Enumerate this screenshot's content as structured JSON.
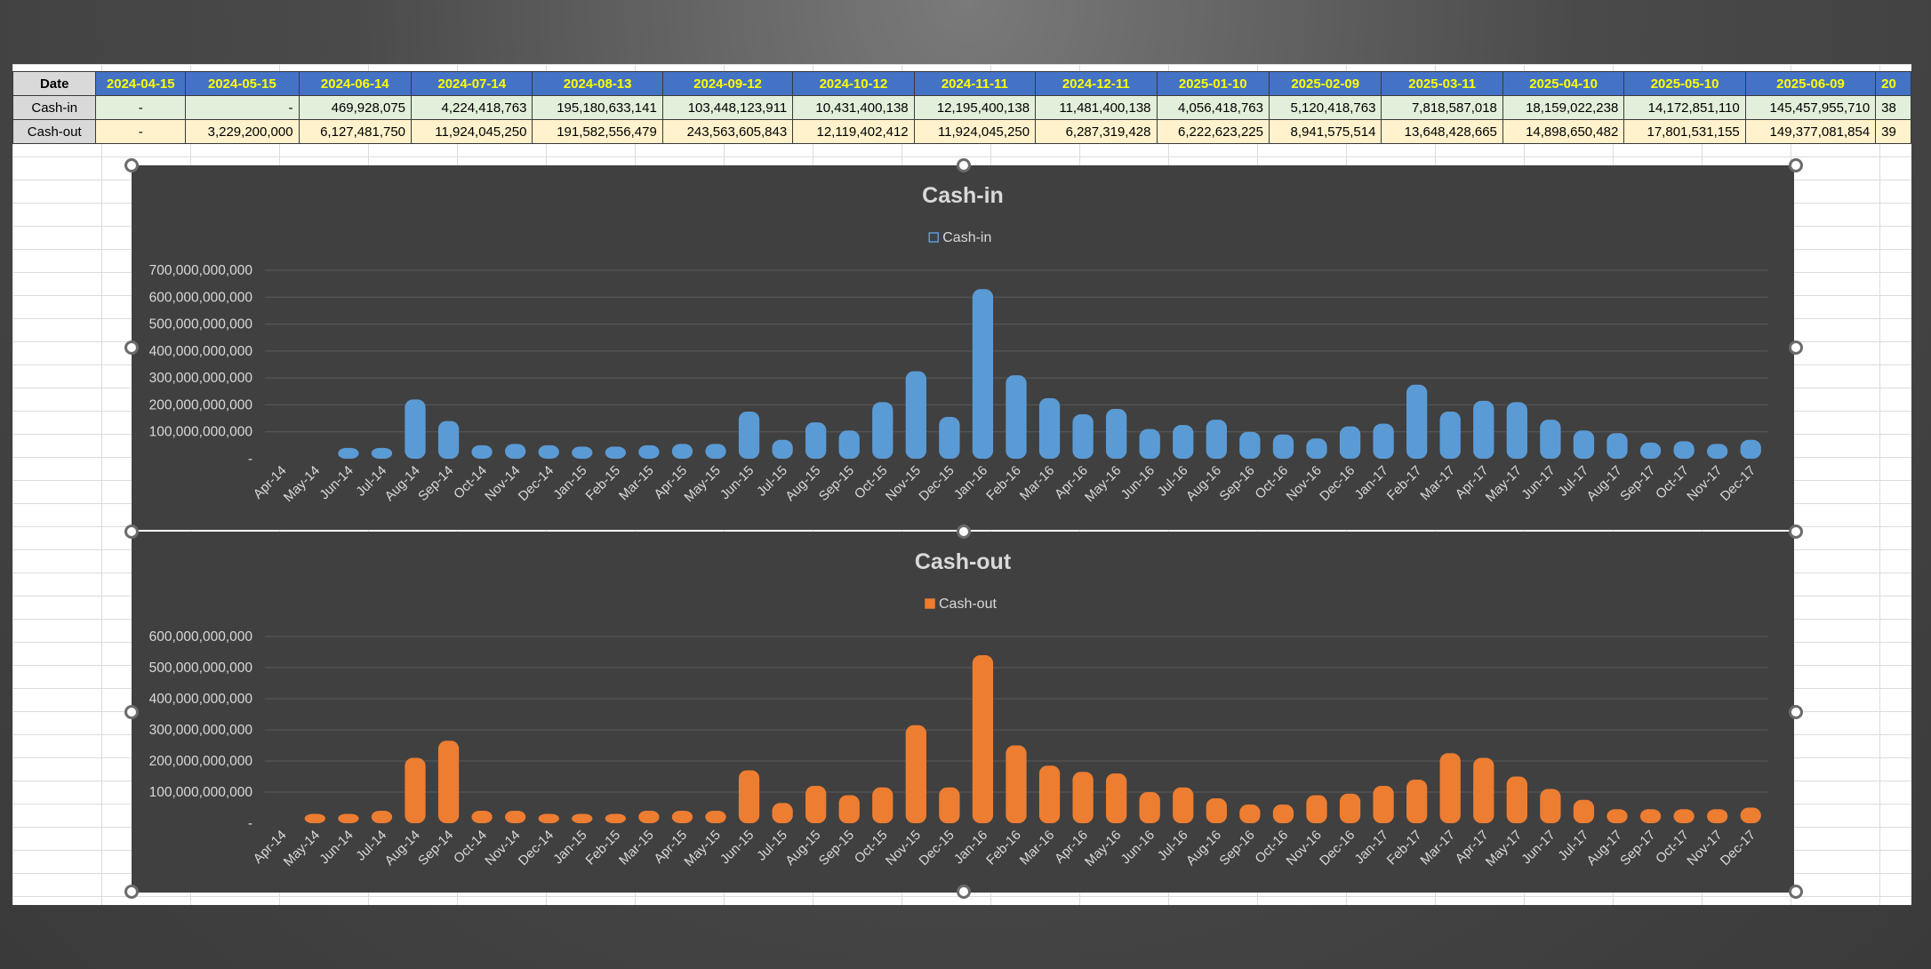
{
  "table": {
    "header_label": "Date",
    "dates": [
      "2024-04-15",
      "2024-05-15",
      "2024-06-14",
      "2024-07-14",
      "2024-08-13",
      "2024-09-12",
      "2024-10-12",
      "2024-11-11",
      "2024-12-11",
      "2025-01-10",
      "2025-02-09",
      "2025-03-11",
      "2025-04-10",
      "2025-05-10",
      "2025-06-09",
      "20"
    ],
    "rows": [
      {
        "label": "Cash-in",
        "values": [
          "-",
          "-",
          "469,928,075",
          "4,224,418,763",
          "195,180,633,141",
          "103,448,123,911",
          "10,431,400,138",
          "12,195,400,138",
          "11,481,400,138",
          "4,056,418,763",
          "5,120,418,763",
          "7,818,587,018",
          "18,159,022,238",
          "14,172,851,110",
          "145,457,955,710",
          "38"
        ]
      },
      {
        "label": "Cash-out",
        "values": [
          "-",
          "3,229,200,000",
          "6,127,481,750",
          "11,924,045,250",
          "191,582,556,479",
          "243,563,605,843",
          "12,119,402,412",
          "11,924,045,250",
          "6,287,319,428",
          "6,222,623,225",
          "8,941,575,514",
          "13,648,428,665",
          "14,898,650,482",
          "17,801,531,155",
          "149,377,081,854",
          "39"
        ]
      }
    ]
  },
  "chart_data": [
    {
      "type": "bar",
      "title": "Cash-in",
      "legend": "Cash-in",
      "legend_position": "top",
      "color": "#5b9bd5",
      "grid": true,
      "ylim": [
        0,
        700000000000
      ],
      "yticks": [
        0,
        100000000000,
        200000000000,
        300000000000,
        400000000000,
        500000000000,
        600000000000,
        700000000000
      ],
      "ytick_labels": [
        "-",
        "100,000,000,000",
        "200,000,000,000",
        "300,000,000,000",
        "400,000,000,000",
        "500,000,000,000",
        "600,000,000,000",
        "700,000,000,000"
      ],
      "categories": [
        "Apr-14",
        "May-14",
        "Jun-14",
        "Jul-14",
        "Aug-14",
        "Sep-14",
        "Oct-14",
        "Nov-14",
        "Dec-14",
        "Jan-15",
        "Feb-15",
        "Mar-15",
        "Apr-15",
        "May-15",
        "Jun-15",
        "Jul-15",
        "Aug-15",
        "Sep-15",
        "Oct-15",
        "Nov-15",
        "Dec-15",
        "Jan-16",
        "Feb-16",
        "Mar-16",
        "Apr-16",
        "May-16",
        "Jun-16",
        "Jul-16",
        "Aug-16",
        "Sep-16",
        "Oct-16",
        "Nov-16",
        "Dec-16",
        "Jan-17",
        "Feb-17",
        "Mar-17",
        "Apr-17",
        "May-17",
        "Jun-17",
        "Jul-17",
        "Aug-17",
        "Sep-17",
        "Oct-17",
        "Nov-17",
        "Dec-17"
      ],
      "values": [
        0,
        0,
        40000000000,
        40000000000,
        220000000000,
        140000000000,
        50000000000,
        55000000000,
        50000000000,
        45000000000,
        45000000000,
        50000000000,
        55000000000,
        55000000000,
        175000000000,
        70000000000,
        135000000000,
        105000000000,
        210000000000,
        325000000000,
        155000000000,
        630000000000,
        310000000000,
        225000000000,
        165000000000,
        185000000000,
        110000000000,
        125000000000,
        145000000000,
        100000000000,
        90000000000,
        75000000000,
        120000000000,
        130000000000,
        275000000000,
        175000000000,
        215000000000,
        210000000000,
        145000000000,
        105000000000,
        95000000000,
        60000000000,
        65000000000,
        55000000000,
        70000000000
      ]
    },
    {
      "type": "bar",
      "title": "Cash-out",
      "legend": "Cash-out",
      "legend_position": "top",
      "color": "#ed7d31",
      "grid": true,
      "ylim": [
        0,
        600000000000
      ],
      "yticks": [
        0,
        100000000000,
        200000000000,
        300000000000,
        400000000000,
        500000000000,
        600000000000
      ],
      "ytick_labels": [
        "-",
        "100,000,000,000",
        "200,000,000,000",
        "300,000,000,000",
        "400,000,000,000",
        "500,000,000,000",
        "600,000,000,000"
      ],
      "categories": [
        "Apr-14",
        "May-14",
        "Jun-14",
        "Jul-14",
        "Aug-14",
        "Sep-14",
        "Oct-14",
        "Nov-14",
        "Dec-14",
        "Jan-15",
        "Feb-15",
        "Mar-15",
        "Apr-15",
        "May-15",
        "Jun-15",
        "Jul-15",
        "Aug-15",
        "Sep-15",
        "Oct-15",
        "Nov-15",
        "Dec-15",
        "Jan-16",
        "Feb-16",
        "Mar-16",
        "Apr-16",
        "May-16",
        "Jun-16",
        "Jul-16",
        "Aug-16",
        "Sep-16",
        "Oct-16",
        "Nov-16",
        "Dec-16",
        "Jan-17",
        "Feb-17",
        "Mar-17",
        "Apr-17",
        "May-17",
        "Jun-17",
        "Jul-17",
        "Aug-17",
        "Sep-17",
        "Oct-17",
        "Nov-17",
        "Dec-17"
      ],
      "values": [
        0,
        30000000000,
        30000000000,
        40000000000,
        210000000000,
        265000000000,
        40000000000,
        40000000000,
        30000000000,
        30000000000,
        30000000000,
        40000000000,
        40000000000,
        40000000000,
        170000000000,
        65000000000,
        120000000000,
        90000000000,
        115000000000,
        315000000000,
        115000000000,
        540000000000,
        250000000000,
        185000000000,
        165000000000,
        160000000000,
        100000000000,
        115000000000,
        80000000000,
        60000000000,
        60000000000,
        90000000000,
        95000000000,
        120000000000,
        140000000000,
        225000000000,
        210000000000,
        150000000000,
        110000000000,
        75000000000,
        45000000000,
        45000000000,
        45000000000,
        45000000000,
        50000000000
      ]
    }
  ]
}
